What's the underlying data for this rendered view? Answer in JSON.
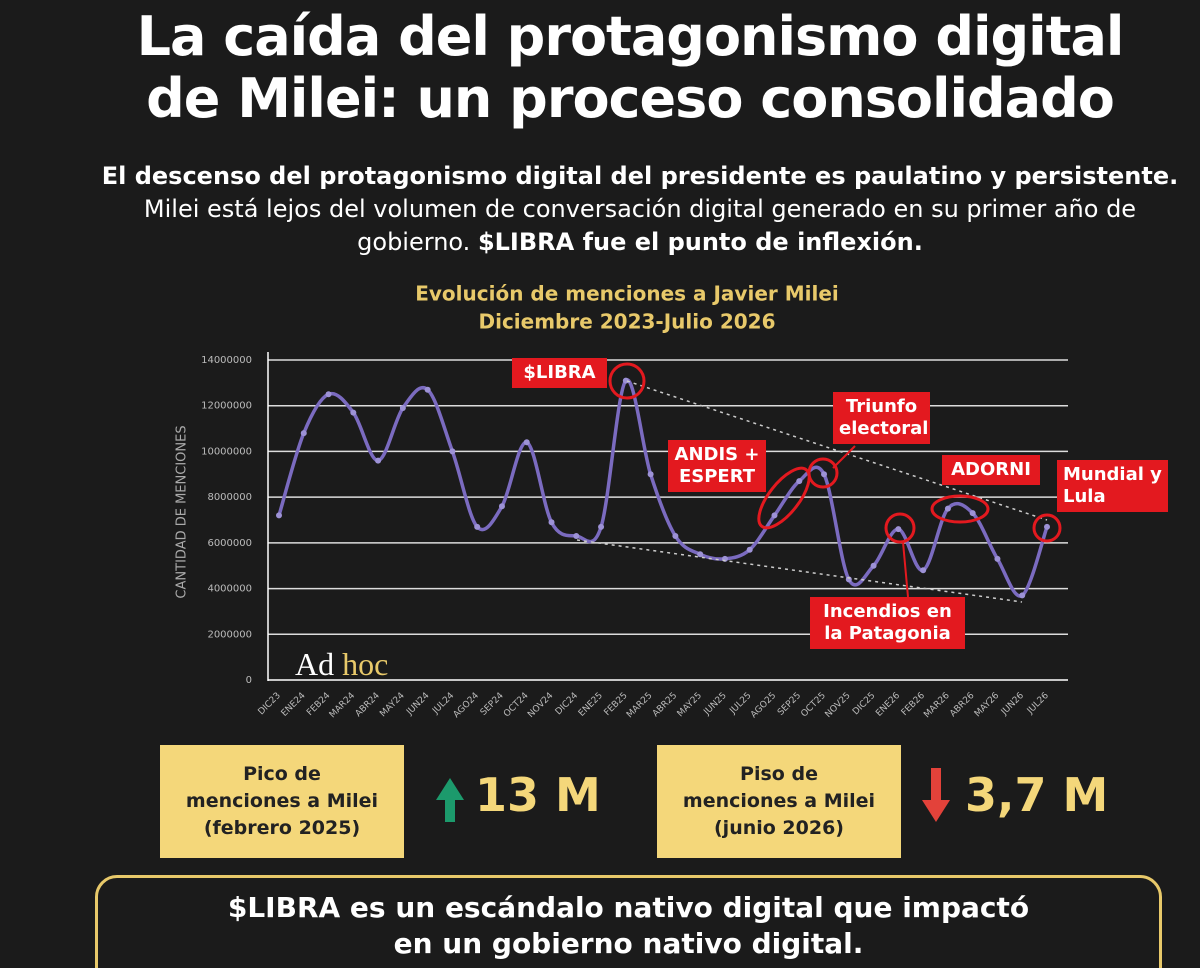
{
  "title_lines": [
    "La caída del protagonismo digital",
    "de Milei: un proceso consolidado"
  ],
  "subtitle": [
    {
      "text": "El descenso del protagonismo digital del presidente es paulatino y persistente.",
      "bold": true
    },
    {
      "text": "Milei está lejos del volumen de conversación digital generado en su primer año de gobierno.",
      "bold": false
    },
    {
      "text": "$LIBRA fue el punto de inflexión.",
      "bold": true
    }
  ],
  "chart_data": {
    "type": "line",
    "title_lines": [
      "Evolución de menciones a Javier Milei",
      "Diciembre 2023-Julio 2026"
    ],
    "y_label": "CANTIDAD DE MENCIONES",
    "categories": [
      "DIC23",
      "ENE24",
      "FEB24",
      "MAR24",
      "ABR24",
      "MAY24",
      "JUN24",
      "JUL24",
      "AGO24",
      "SEP24",
      "OCT24",
      "NOV24",
      "DIC24",
      "ENE25",
      "FEB25",
      "MAR25",
      "ABR25",
      "MAY25",
      "JUN25",
      "JUL25",
      "AGO25",
      "SEP25",
      "OCT25",
      "NOV25",
      "DIC25",
      "ENE26",
      "FEB26",
      "MAR26",
      "ABR26",
      "MAY26",
      "JUN26",
      "JUL26"
    ],
    "series": [
      {
        "name": "Menciones",
        "color": "#7b6bc0",
        "values": [
          7200000,
          10800000,
          12500000,
          11700000,
          9600000,
          11900000,
          12700000,
          10000000,
          6700000,
          7600000,
          10400000,
          6900000,
          6300000,
          6700000,
          13100000,
          9000000,
          6300000,
          5500000,
          5300000,
          5700000,
          7200000,
          8700000,
          9000000,
          4400000,
          5000000,
          6600000,
          4800000,
          7500000,
          7300000,
          5300000,
          3700000,
          6700000
        ]
      }
    ],
    "ylim": [
      0,
      14000000
    ],
    "yticks": [
      0,
      2000000,
      4000000,
      6000000,
      8000000,
      10000000,
      12000000,
      14000000
    ],
    "grid": true,
    "annotations": [
      {
        "lines": [
          "$LIBRA"
        ]
      },
      {
        "lines": [
          "ANDIS +",
          "ESPERT"
        ]
      },
      {
        "lines": [
          "Triunfo",
          "electoral"
        ]
      },
      {
        "lines": [
          "ADORNI"
        ]
      },
      {
        "lines": [
          "Mundial y",
          "Lula"
        ]
      },
      {
        "lines": [
          "Incendios en",
          "la Patagonia"
        ]
      }
    ],
    "logo": [
      "Ad",
      "hoc"
    ]
  },
  "stats": [
    {
      "label_lines": [
        "Pico de",
        "menciones a Milei",
        "(febrero 2025)"
      ],
      "value": "13 M",
      "direction": "up"
    },
    {
      "label_lines": [
        "Piso de",
        "menciones a Milei",
        "(junio 2026)"
      ],
      "value": "3,7 M",
      "direction": "down"
    }
  ],
  "footer_lines": [
    "$LIBRA es un escándalo nativo digital que impactó",
    "en un gobierno nativo digital."
  ]
}
